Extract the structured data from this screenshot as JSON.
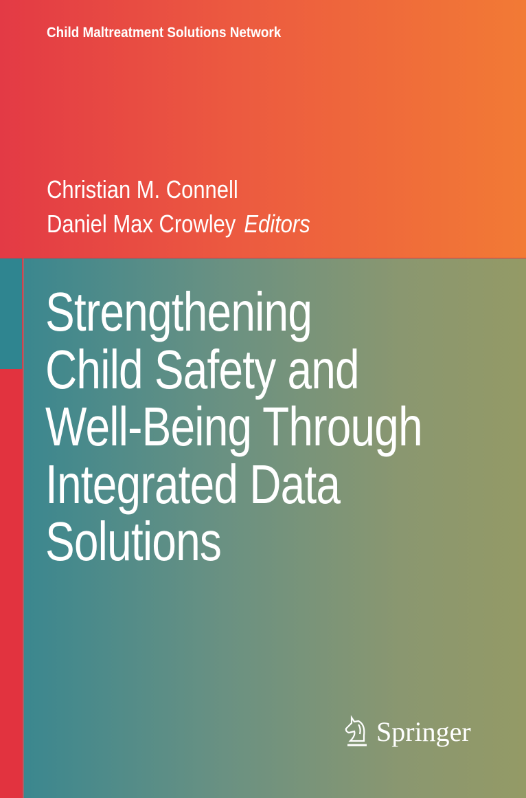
{
  "series": "Child Maltreatment Solutions Network",
  "editors": [
    "Christian M. Connell",
    "Daniel Max Crowley"
  ],
  "editors_label": "Editors",
  "title_lines": [
    "Strengthening",
    "Child Safety and",
    "Well-Being Through",
    "Integrated Data",
    "Solutions"
  ],
  "publisher": "Springer",
  "colors": {
    "top_band": "#e33a45",
    "top_band_end": "#f27a35",
    "main_start": "#3b878f",
    "main_end": "#949a66",
    "accent_strip": "#e2333f"
  }
}
